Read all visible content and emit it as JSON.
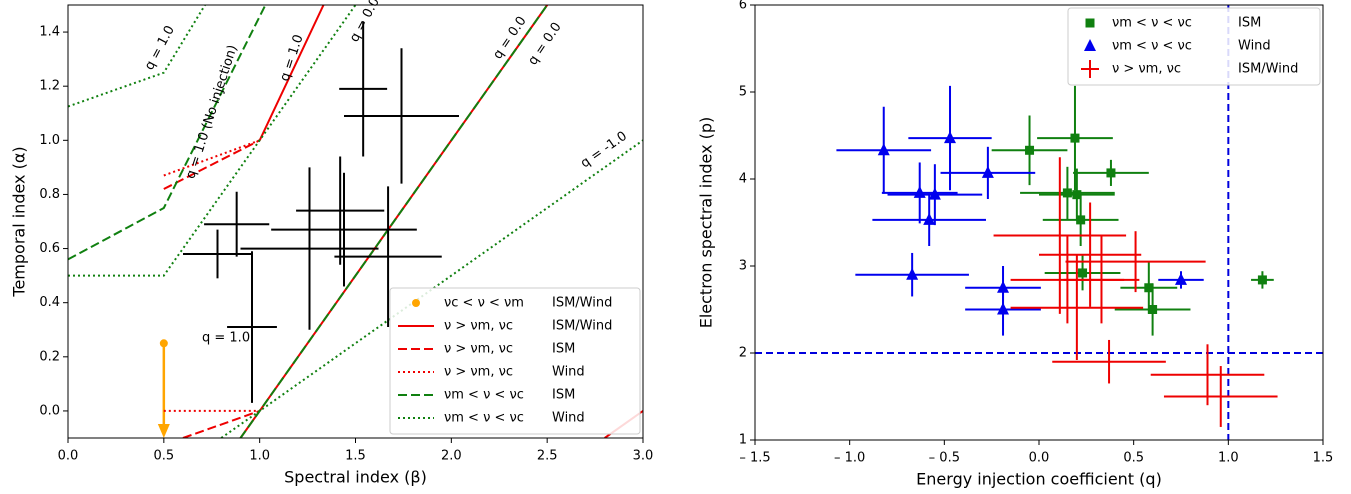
{
  "chart_data": [
    {
      "type": "line",
      "xlabel": "Spectral index (β)",
      "ylabel": "Temporal index (α)",
      "xlim": [
        0,
        3
      ],
      "ylim": [
        -0.1,
        1.5
      ],
      "xticks": [
        {
          "value": 0,
          "label": "0.0"
        },
        0.5,
        {
          "value": 1,
          "label": "1.0"
        },
        1.5,
        {
          "value": 2,
          "label": "2.0"
        },
        2.5,
        {
          "value": 3,
          "label": "3.0"
        }
      ],
      "yticks": [
        {
          "value": 0,
          "label": "0.0"
        },
        0.2,
        0.4,
        0.6,
        0.8,
        {
          "value": 1,
          "label": "1.0"
        },
        1.2,
        1.4
      ],
      "legend": "lower right",
      "series": [
        {
          "name": "νc < ν < νm",
          "medium": "ISM/Wind",
          "color": "#ffa500",
          "style": "point",
          "x": [
            0.5
          ],
          "y": [
            0.25
          ],
          "arrow_end": [
            -0.1
          ]
        },
        {
          "name": "ν > νm, νc",
          "medium": "ISM/Wind",
          "color": "#ee0000",
          "style": "solid",
          "x": [
            1.0,
            1.333,
            null,
            0.9,
            2.5,
            null,
            2.8,
            3.0
          ],
          "y": [
            1.0,
            1.5,
            null,
            -0.1,
            1.5,
            null,
            -0.1,
            0.0
          ]
        },
        {
          "name": "ν > νm, νc",
          "medium": "ISM",
          "color": "#ee0000",
          "style": "dashed",
          "x": [
            0.5,
            1.0,
            null,
            0.6,
            1.0
          ],
          "y": [
            0.82,
            1.0,
            null,
            -0.1,
            0.0
          ]
        },
        {
          "name": "ν > νm, νc",
          "medium": "Wind",
          "color": "#ee0000",
          "style": "dotted",
          "x": [
            0.5,
            1.0,
            null,
            0.5,
            1.0
          ],
          "y": [
            0.87,
            1.0,
            null,
            0.0,
            0.0
          ]
        },
        {
          "name": "νm < ν < νc",
          "medium": "ISM",
          "color": "#108010",
          "style": "dashed",
          "x": [
            0,
            0.5,
            1.03,
            null,
            0.9,
            2.5
          ],
          "y": [
            0.56,
            0.75,
            1.5,
            null,
            -0.1,
            1.5
          ]
        },
        {
          "name": "νm < ν < νc",
          "medium": "Wind",
          "color": "#108010",
          "style": "dotted",
          "x": [
            0,
            0.5,
            0.715,
            null,
            0,
            0.5,
            1.5,
            null,
            0.8,
            3.0
          ],
          "y": [
            1.125,
            1.25,
            1.5,
            null,
            0.5,
            0.5,
            1.5,
            null,
            -0.1,
            1.0
          ]
        }
      ],
      "points": {
        "color": "#000000",
        "x": [
          1.54,
          1.74,
          0.88,
          0.78,
          0.96,
          1.26,
          1.42,
          1.44,
          1.67
        ],
        "y": [
          1.19,
          1.09,
          0.69,
          0.58,
          0.31,
          0.6,
          0.74,
          0.67,
          0.57
        ],
        "xerr": [
          0.125,
          0.3,
          0.17,
          0.18,
          0.13,
          0.36,
          0.23,
          0.38,
          0.28
        ],
        "yerr": [
          0.25,
          0.25,
          0.12,
          0.09,
          0.28,
          0.3,
          0.2,
          0.21,
          0.26
        ]
      },
      "annotations": [
        {
          "text": "q = 1.0",
          "color": "#108010"
        },
        {
          "text": "q = 1.0 (No injection)",
          "color": "#108010"
        },
        {
          "text": "q = 1.0",
          "color": "#ee0000"
        },
        {
          "text": "q = 0.0",
          "color": "#108010"
        },
        {
          "text": "q = 0.0",
          "color": "#108010"
        },
        {
          "text": "q = 0.0",
          "color": "#ee0000"
        },
        {
          "text": "q = -1.0",
          "color": "#108010"
        },
        {
          "text": "q = 1.0",
          "color": "#ffa500"
        }
      ]
    },
    {
      "type": "scatter",
      "xlabel": "Energy injection coefficient (q)",
      "ylabel": "Electron spectral index (p)",
      "xlim": [
        -1.5,
        1.5
      ],
      "ylim": [
        1,
        6
      ],
      "xticks": [
        {
          "value": -1.5,
          "label": "– 1.5"
        },
        {
          "value": -1,
          "label": "– 1.0"
        },
        {
          "value": -0.5,
          "label": "– 0.5"
        },
        {
          "value": 0,
          "label": "0.0"
        },
        0.5,
        {
          "value": 1,
          "label": "1.0"
        },
        1.5
      ],
      "yticks": [
        1,
        2,
        3,
        4,
        5,
        6
      ],
      "legend": "upper right",
      "reference_lines": {
        "x": 1.0,
        "y": 2.0,
        "color": "#0000dd"
      },
      "series": [
        {
          "name": "νm < ν < νc",
          "medium": "ISM",
          "color": "#108010",
          "marker": "square",
          "x": [
            -0.05,
            0.19,
            0.15,
            0.2,
            0.22,
            0.38,
            0.23,
            0.58,
            0.6,
            1.18
          ],
          "y": [
            4.33,
            4.47,
            3.84,
            3.82,
            3.53,
            4.07,
            2.92,
            2.75,
            2.5,
            2.84
          ],
          "xerr": [
            0.2,
            0.2,
            0.25,
            0.2,
            0.2,
            0.2,
            0.2,
            0.15,
            0.2,
            0.06
          ],
          "yerr": [
            0.4,
            0.6,
            0.3,
            0.3,
            0.3,
            0.15,
            0.2,
            0.3,
            0.3,
            0.1
          ]
        },
        {
          "name": "νm < ν < νc",
          "medium": "Wind",
          "color": "#0000ee",
          "marker": "triangle",
          "x": [
            -0.82,
            -0.47,
            -0.63,
            -0.55,
            -0.58,
            -0.27,
            -0.67,
            -0.19,
            -0.19,
            0.75
          ],
          "y": [
            4.33,
            4.47,
            3.84,
            3.82,
            3.53,
            4.07,
            2.9,
            2.75,
            2.5,
            2.84
          ],
          "xerr": [
            0.25,
            0.22,
            0.2,
            0.25,
            0.3,
            0.25,
            0.3,
            0.2,
            0.2,
            0.12
          ],
          "yerr": [
            0.5,
            0.6,
            0.35,
            0.35,
            0.3,
            0.3,
            0.25,
            0.25,
            0.3,
            0.1
          ]
        },
        {
          "name": "ν > νm, νc",
          "medium": "ISM/Wind",
          "color": "#ee0000",
          "marker": "plus",
          "x": [
            0.11,
            0.27,
            0.15,
            0.33,
            0.51,
            0.37,
            0.89,
            0.96,
            0.2
          ],
          "y": [
            3.35,
            3.13,
            2.84,
            2.84,
            3.05,
            1.9,
            1.75,
            1.5,
            2.52
          ],
          "xerr": [
            0.35,
            0.27,
            0.3,
            0.2,
            0.37,
            0.3,
            0.3,
            0.3,
            0.35
          ],
          "yerr": [
            0.9,
            0.6,
            0.5,
            0.5,
            0.35,
            0.25,
            0.35,
            0.35,
            0.6
          ]
        }
      ]
    }
  ]
}
